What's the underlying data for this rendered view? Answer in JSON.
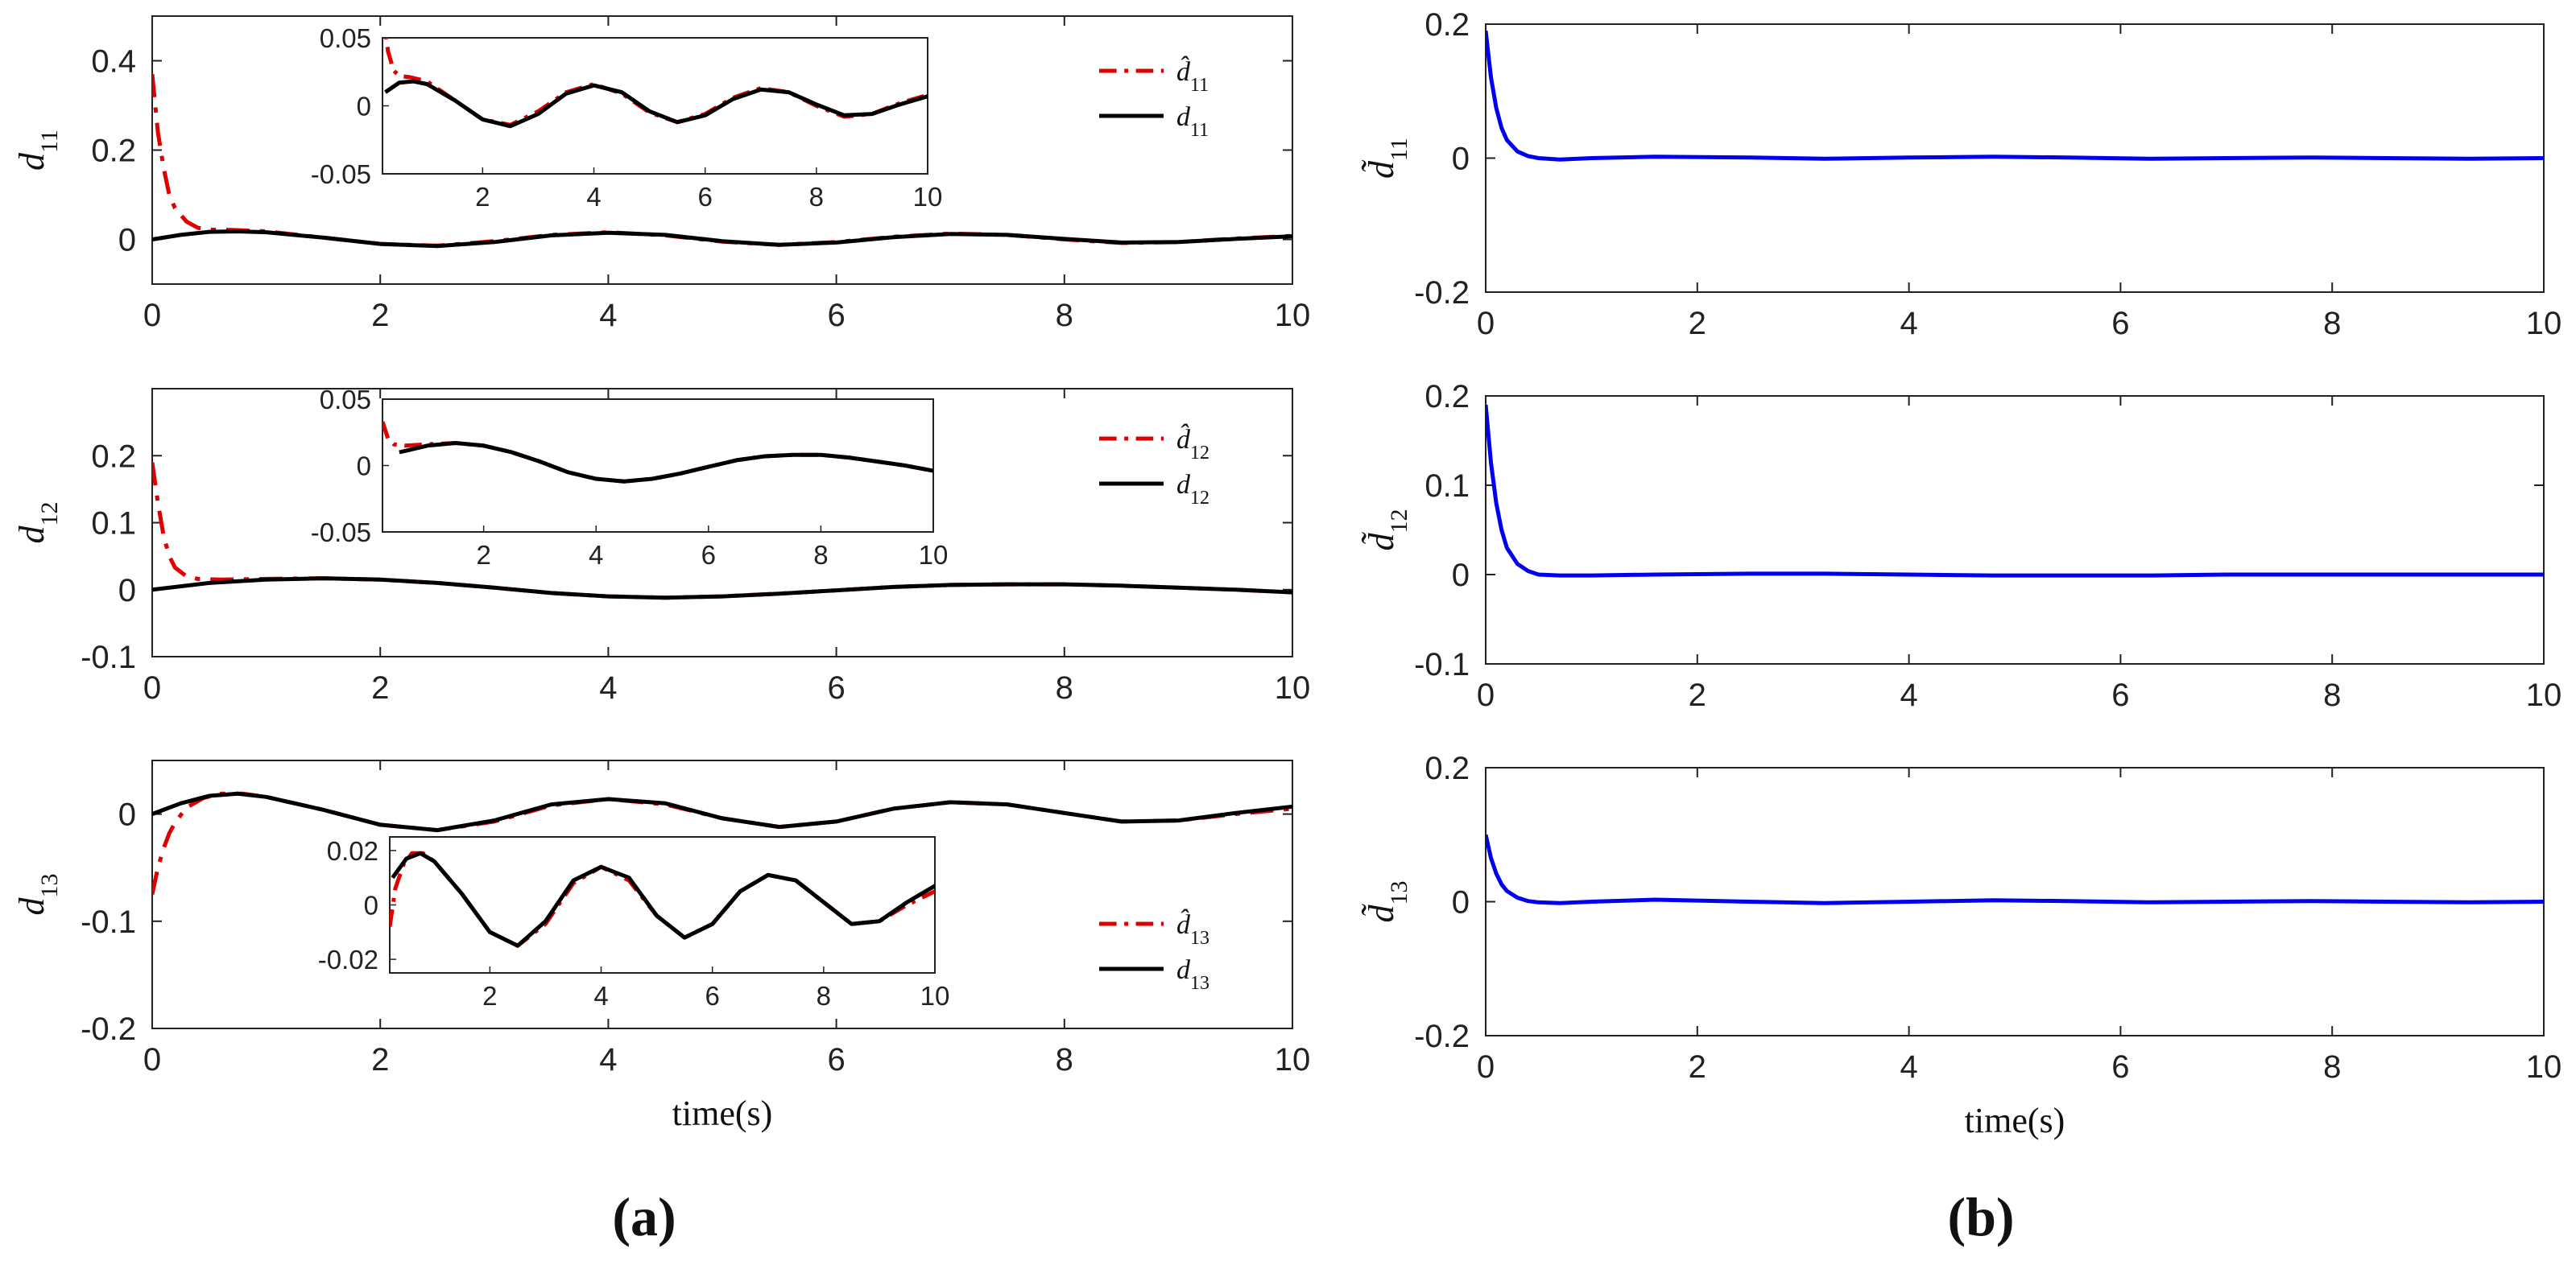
{
  "chart_data": [
    {
      "id": "d11",
      "panel": "a",
      "type": "line",
      "ylabel": "d",
      "ylabel_sub": "11",
      "ylim": [
        -0.1,
        0.5
      ],
      "xlim": [
        0,
        10
      ],
      "xticks": [
        0,
        2,
        4,
        6,
        8,
        10
      ],
      "yticks": [
        0,
        0.2,
        0.4
      ],
      "xtick_labels": [
        "0",
        "2",
        "4",
        "6",
        "8",
        "10"
      ],
      "ytick_labels": [
        "0",
        "0.2",
        "0.4"
      ],
      "xlabel": "",
      "legend": {
        "placement": "top-right",
        "entries": [
          {
            "name": "d̂",
            "sub": "11",
            "style": "red-dashdot"
          },
          {
            "name": "d",
            "sub": "11",
            "style": "black-solid"
          }
        ]
      },
      "series": [
        {
          "name": "estimate",
          "color": "#e00000",
          "dash": "dashdot",
          "x": [
            0,
            0.05,
            0.1,
            0.15,
            0.2,
            0.3,
            0.4,
            0.5,
            0.7,
            1.0,
            1.5,
            2.0,
            2.5,
            3.0,
            3.5,
            4.0,
            4.5,
            5.0,
            5.5,
            6.0,
            6.5,
            7.0,
            7.5,
            8.0,
            8.5,
            9.0,
            9.5,
            10.0
          ],
          "y": [
            0.37,
            0.24,
            0.16,
            0.1,
            0.07,
            0.04,
            0.026,
            0.022,
            0.021,
            0.018,
            0.004,
            -0.01,
            -0.014,
            -0.004,
            0.01,
            0.016,
            0.009,
            -0.005,
            -0.012,
            -0.006,
            0.006,
            0.013,
            0.01,
            0.0,
            -0.008,
            -0.006,
            0.002,
            0.008
          ]
        },
        {
          "name": "actual",
          "color": "#000000",
          "dash": "solid",
          "x": [
            0,
            0.25,
            0.5,
            0.75,
            1.0,
            1.5,
            2.0,
            2.5,
            3.0,
            3.5,
            4.0,
            4.5,
            5.0,
            5.5,
            6.0,
            6.5,
            7.0,
            7.5,
            8.0,
            8.5,
            9.0,
            9.5,
            10.0
          ],
          "y": [
            0.0,
            0.01,
            0.017,
            0.018,
            0.016,
            0.004,
            -0.01,
            -0.015,
            -0.006,
            0.009,
            0.015,
            0.01,
            -0.004,
            -0.012,
            -0.007,
            0.005,
            0.012,
            0.01,
            0.001,
            -0.007,
            -0.006,
            0.001,
            0.007
          ]
        }
      ],
      "inset": {
        "xlim": [
          0.2,
          10
        ],
        "ylim": [
          -0.05,
          0.05
        ],
        "xticks": [
          2,
          4,
          6,
          8,
          10
        ],
        "yticks": [
          -0.05,
          0,
          0.05
        ],
        "xtick_labels": [
          "2",
          "4",
          "6",
          "8",
          "10"
        ],
        "ytick_labels": [
          "-0.05",
          "0",
          "0.05"
        ]
      }
    },
    {
      "id": "d12",
      "panel": "a",
      "type": "line",
      "ylabel": "d",
      "ylabel_sub": "12",
      "ylim": [
        -0.1,
        0.3
      ],
      "xlim": [
        0,
        10
      ],
      "xticks": [
        0,
        2,
        4,
        6,
        8,
        10
      ],
      "yticks": [
        -0.1,
        0,
        0.1,
        0.2
      ],
      "xtick_labels": [
        "0",
        "2",
        "4",
        "6",
        "8",
        "10"
      ],
      "ytick_labels": [
        "-0.1",
        "0",
        "0.1",
        "0.2"
      ],
      "xlabel": "",
      "legend": {
        "placement": "top-right",
        "entries": [
          {
            "name": "d̂",
            "sub": "12",
            "style": "red-dashdot"
          },
          {
            "name": "d",
            "sub": "12",
            "style": "black-solid"
          }
        ]
      },
      "series": [
        {
          "name": "estimate",
          "color": "#e00000",
          "dash": "dashdot",
          "x": [
            0,
            0.05,
            0.1,
            0.15,
            0.2,
            0.3,
            0.4,
            0.6,
            1.0,
            1.5,
            2.0,
            2.5,
            3.0,
            3.5,
            4.0,
            4.5,
            5.0,
            5.5,
            6.0,
            6.5,
            7.0,
            7.5,
            8.0,
            8.5,
            9.0,
            9.5,
            10.0
          ],
          "y": [
            0.19,
            0.13,
            0.08,
            0.05,
            0.033,
            0.02,
            0.016,
            0.015,
            0.016,
            0.017,
            0.015,
            0.01,
            0.003,
            -0.005,
            -0.01,
            -0.012,
            -0.01,
            -0.006,
            -0.001,
            0.004,
            0.007,
            0.008,
            0.008,
            0.006,
            0.003,
            0.0,
            -0.004
          ]
        },
        {
          "name": "actual",
          "color": "#000000",
          "dash": "solid",
          "x": [
            0,
            0.5,
            1.0,
            1.5,
            2.0,
            2.5,
            3.0,
            3.5,
            4.0,
            4.5,
            5.0,
            5.5,
            6.0,
            6.5,
            7.0,
            7.5,
            8.0,
            8.5,
            9.0,
            9.5,
            10.0
          ],
          "y": [
            0.0,
            0.01,
            0.015,
            0.017,
            0.015,
            0.01,
            0.003,
            -0.005,
            -0.01,
            -0.012,
            -0.01,
            -0.006,
            -0.001,
            0.004,
            0.007,
            0.008,
            0.008,
            0.006,
            0.003,
            0.0,
            -0.004
          ]
        }
      ],
      "inset": {
        "xlim": [
          0.2,
          10
        ],
        "ylim": [
          -0.05,
          0.05
        ],
        "xticks": [
          2,
          4,
          6,
          8,
          10
        ],
        "yticks": [
          -0.05,
          0,
          0.05
        ],
        "xtick_labels": [
          "2",
          "4",
          "6",
          "8",
          "10"
        ],
        "ytick_labels": [
          "-0.05",
          "0",
          "0.05"
        ]
      }
    },
    {
      "id": "d13",
      "panel": "a",
      "type": "line",
      "ylabel": "d",
      "ylabel_sub": "13",
      "ylim": [
        -0.2,
        0.05
      ],
      "xlim": [
        0,
        10
      ],
      "xticks": [
        0,
        2,
        4,
        6,
        8,
        10
      ],
      "yticks": [
        -0.2,
        -0.1,
        0
      ],
      "xtick_labels": [
        "0",
        "2",
        "4",
        "6",
        "8",
        "10"
      ],
      "ytick_labels": [
        "-0.2",
        "-0.1",
        "0"
      ],
      "xlabel": "time(s)",
      "legend": {
        "placement": "bottom-right",
        "entries": [
          {
            "name": "d̂",
            "sub": "13",
            "style": "red-dashdot"
          },
          {
            "name": "d",
            "sub": "13",
            "style": "black-solid"
          }
        ]
      },
      "series": [
        {
          "name": "estimate",
          "color": "#e00000",
          "dash": "dashdot",
          "x": [
            0,
            0.05,
            0.1,
            0.15,
            0.2,
            0.3,
            0.45,
            0.6,
            0.8,
            1.0,
            1.5,
            2.0,
            2.5,
            3.0,
            3.5,
            4.0,
            4.5,
            5.0,
            5.5,
            6.0,
            6.5,
            7.0,
            7.5,
            8.0,
            8.5,
            9.0,
            9.5,
            10.0
          ],
          "y": [
            -0.075,
            -0.05,
            -0.032,
            -0.018,
            -0.008,
            0.006,
            0.015,
            0.019,
            0.019,
            0.016,
            0.004,
            -0.01,
            -0.015,
            -0.007,
            0.008,
            0.014,
            0.009,
            -0.004,
            -0.012,
            -0.007,
            0.005,
            0.011,
            0.009,
            0.001,
            -0.007,
            -0.006,
            0.0,
            0.005
          ]
        },
        {
          "name": "actual",
          "color": "#000000",
          "dash": "solid",
          "x": [
            0,
            0.25,
            0.5,
            0.75,
            1.0,
            1.5,
            2.0,
            2.5,
            3.0,
            3.5,
            4.0,
            4.5,
            5.0,
            5.5,
            6.0,
            6.5,
            7.0,
            7.5,
            8.0,
            8.5,
            9.0,
            9.5,
            10.0
          ],
          "y": [
            0.0,
            0.01,
            0.017,
            0.019,
            0.016,
            0.004,
            -0.01,
            -0.015,
            -0.006,
            0.009,
            0.014,
            0.01,
            -0.004,
            -0.012,
            -0.007,
            0.005,
            0.011,
            0.009,
            0.001,
            -0.007,
            -0.006,
            0.001,
            0.007
          ]
        }
      ],
      "inset": {
        "xlim": [
          0.2,
          10
        ],
        "ylim": [
          -0.025,
          0.025
        ],
        "xticks": [
          2,
          4,
          6,
          8,
          10
        ],
        "yticks": [
          -0.02,
          0,
          0.02
        ],
        "xtick_labels": [
          "2",
          "4",
          "6",
          "8",
          "10"
        ],
        "ytick_labels": [
          "-0.02",
          "0",
          "0.02"
        ]
      }
    },
    {
      "id": "e11",
      "panel": "b",
      "type": "line",
      "ylabel": "d̃",
      "ylabel_sub": "11",
      "ylim": [
        -0.2,
        0.2
      ],
      "xlim": [
        0,
        10
      ],
      "xticks": [
        0,
        2,
        4,
        6,
        8,
        10
      ],
      "yticks": [
        -0.2,
        0,
        0.2
      ],
      "xtick_labels": [
        "0",
        "2",
        "4",
        "6",
        "8",
        "10"
      ],
      "ytick_labels": [
        "-0.2",
        "0",
        "0.2"
      ],
      "xlabel": "",
      "series": [
        {
          "name": "error",
          "color": "#0000ee",
          "dash": "solid",
          "x": [
            0,
            0.05,
            0.1,
            0.15,
            0.2,
            0.3,
            0.4,
            0.5,
            0.7,
            1.0,
            1.6,
            2.5,
            3.2,
            4.0,
            4.8,
            5.5,
            6.3,
            7.0,
            7.8,
            8.5,
            9.3,
            10.0
          ],
          "y": [
            0.19,
            0.12,
            0.075,
            0.045,
            0.027,
            0.01,
            0.003,
            0.0,
            -0.002,
            0.0,
            0.002,
            0.001,
            -0.001,
            0.001,
            0.002,
            0.001,
            -0.001,
            0.0,
            0.001,
            0.0,
            -0.001,
            0.0
          ]
        }
      ]
    },
    {
      "id": "e12",
      "panel": "b",
      "type": "line",
      "ylabel": "d̃",
      "ylabel_sub": "12",
      "ylim": [
        -0.1,
        0.2
      ],
      "xlim": [
        0,
        10
      ],
      "xticks": [
        0,
        2,
        4,
        6,
        8,
        10
      ],
      "yticks": [
        -0.1,
        0,
        0.1,
        0.2
      ],
      "xtick_labels": [
        "0",
        "2",
        "4",
        "6",
        "8",
        "10"
      ],
      "ytick_labels": [
        "-0.1",
        "0",
        "0.1",
        "0.2"
      ],
      "xlabel": "",
      "series": [
        {
          "name": "error",
          "color": "#0000ee",
          "dash": "solid",
          "x": [
            0,
            0.05,
            0.1,
            0.15,
            0.2,
            0.3,
            0.4,
            0.5,
            0.7,
            1.0,
            1.6,
            2.5,
            3.2,
            4.0,
            4.8,
            5.5,
            6.3,
            7.0,
            7.8,
            8.5,
            9.3,
            10.0
          ],
          "y": [
            0.19,
            0.125,
            0.08,
            0.05,
            0.03,
            0.012,
            0.004,
            0.0,
            -0.001,
            -0.001,
            0.0,
            0.001,
            0.001,
            0.0,
            -0.001,
            -0.001,
            -0.001,
            0.0,
            0.0,
            0.0,
            0.0,
            0.0
          ]
        }
      ]
    },
    {
      "id": "e13",
      "panel": "b",
      "type": "line",
      "ylabel": "d̃",
      "ylabel_sub": "13",
      "ylim": [
        -0.2,
        0.2
      ],
      "xlim": [
        0,
        10
      ],
      "xticks": [
        0,
        2,
        4,
        6,
        8,
        10
      ],
      "yticks": [
        -0.2,
        0,
        0.2
      ],
      "xtick_labels": [
        "0",
        "2",
        "4",
        "6",
        "8",
        "10"
      ],
      "ytick_labels": [
        "-0.2",
        "0",
        "0.2"
      ],
      "xlabel": "time(s)",
      "series": [
        {
          "name": "error",
          "color": "#0000ee",
          "dash": "solid",
          "x": [
            0,
            0.05,
            0.1,
            0.15,
            0.2,
            0.3,
            0.4,
            0.5,
            0.7,
            1.0,
            1.6,
            2.5,
            3.2,
            4.0,
            4.8,
            5.5,
            6.3,
            7.0,
            7.8,
            8.5,
            9.3,
            10.0
          ],
          "y": [
            0.1,
            0.065,
            0.042,
            0.026,
            0.016,
            0.006,
            0.001,
            -0.001,
            -0.002,
            0.0,
            0.003,
            0.0,
            -0.002,
            0.0,
            0.002,
            0.001,
            -0.001,
            0.0,
            0.001,
            0.0,
            -0.001,
            0.0
          ]
        }
      ]
    }
  ],
  "panel_labels": {
    "a": "(a)",
    "b": "(b)"
  }
}
